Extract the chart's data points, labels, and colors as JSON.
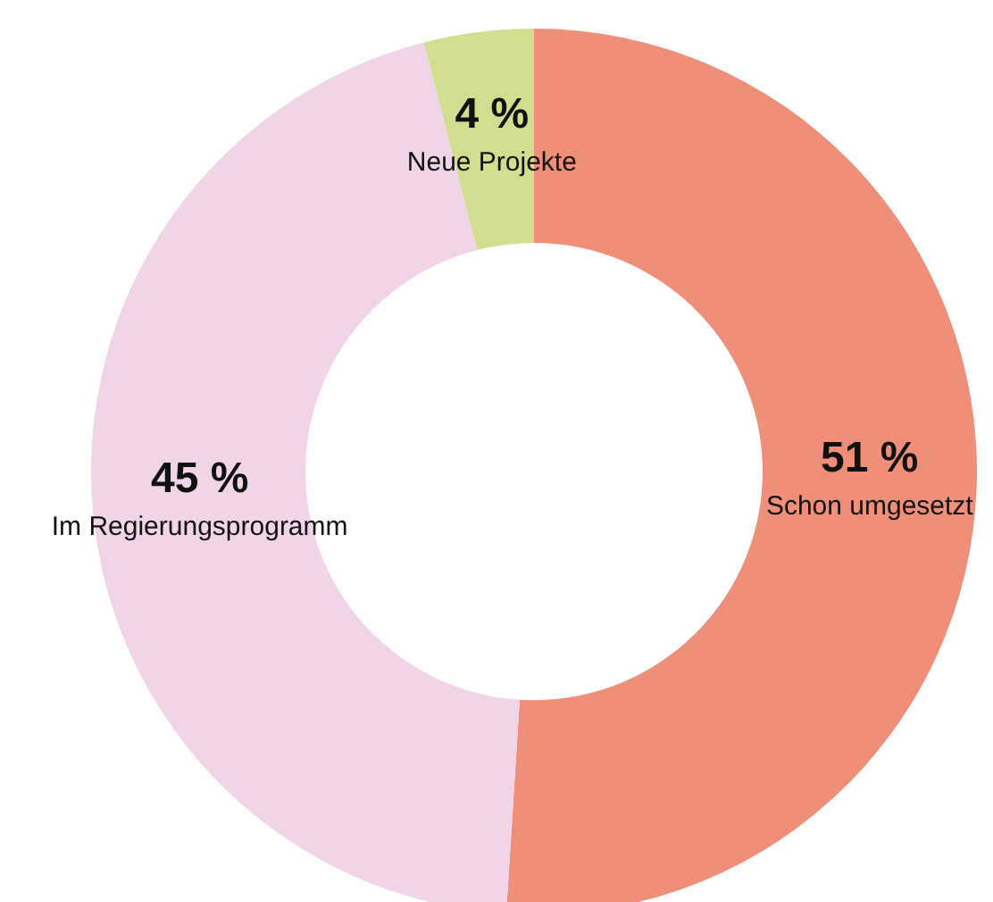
{
  "chart_data": {
    "type": "donut",
    "categories": [
      "Schon umgesetzt",
      "Im Regierungsprogramm",
      "Neue Projekte"
    ],
    "values": [
      51,
      45,
      4
    ],
    "value_labels": [
      "51 %",
      "45 %",
      "4 %"
    ],
    "colors": [
      "#ef8f79",
      "#f1d4e8",
      "#d1de8f"
    ],
    "legend": false
  }
}
